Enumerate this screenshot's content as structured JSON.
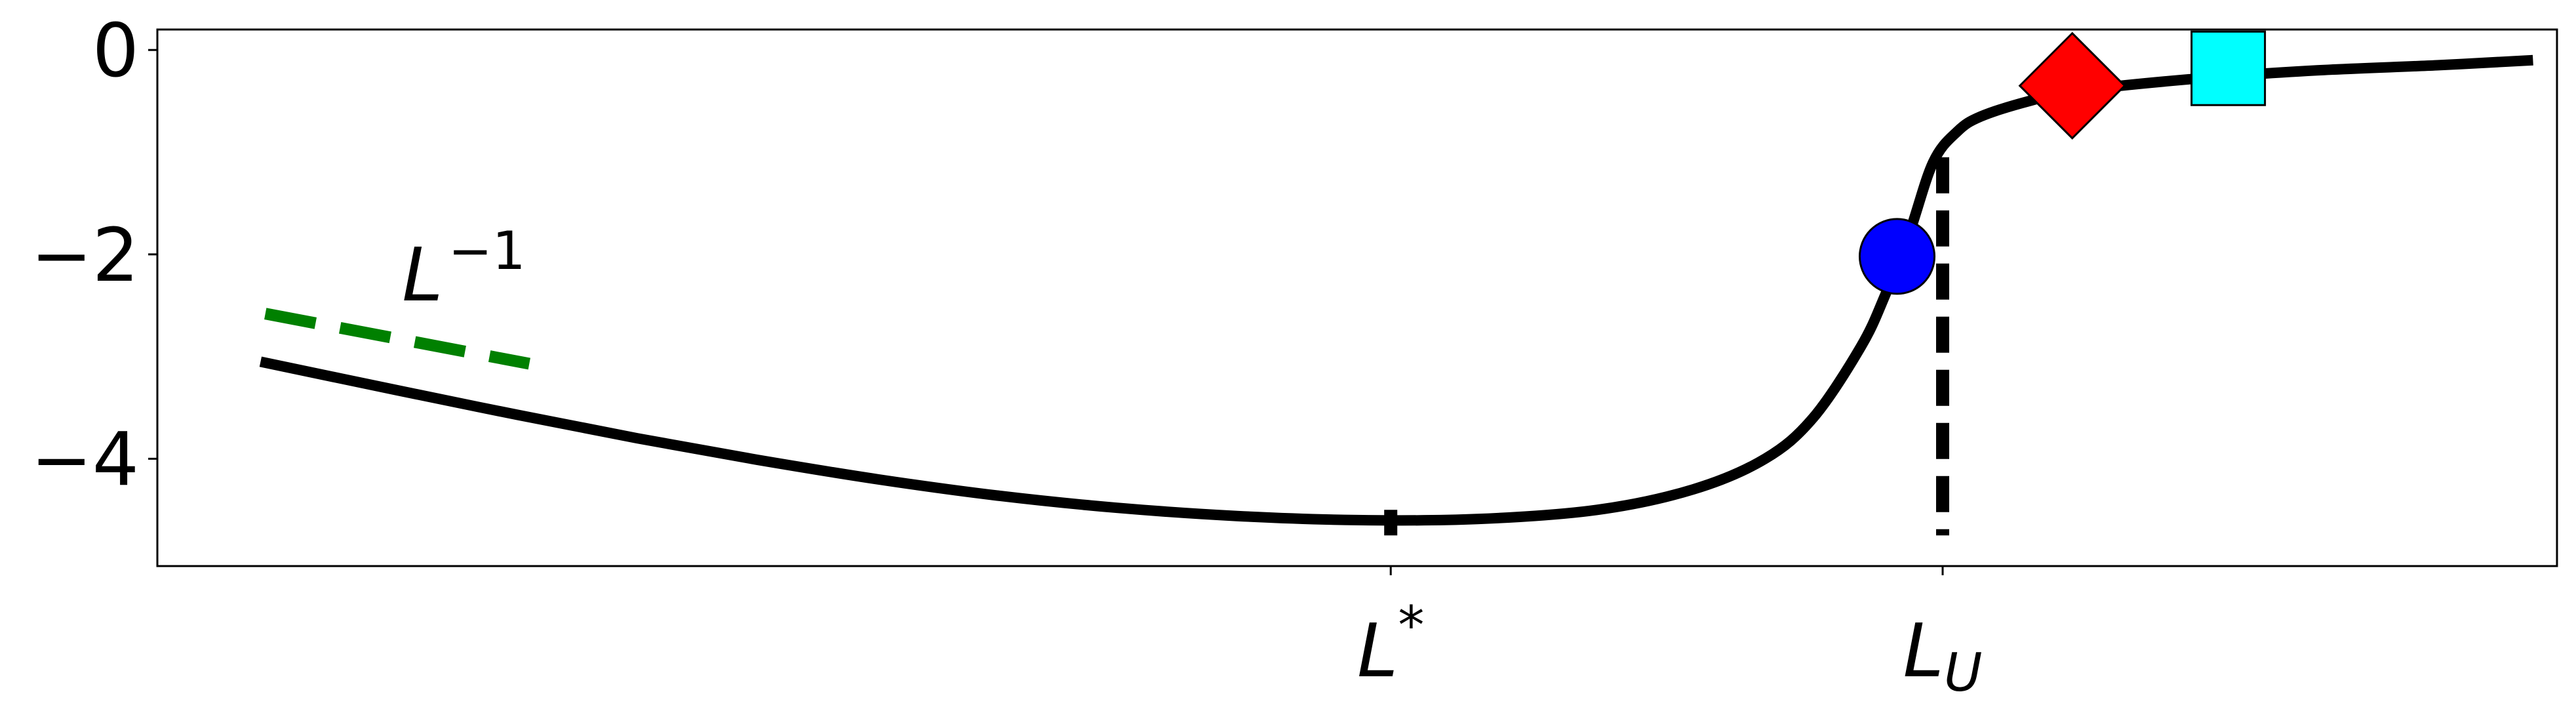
{
  "chart_data": {
    "type": "line",
    "title": "",
    "xlabel": "",
    "ylabel": "",
    "ylim": [
      -5.05,
      0.2
    ],
    "xlim": [
      0,
      1
    ],
    "grid": false,
    "y_ticks": [
      {
        "value": 0,
        "label": "0"
      },
      {
        "value": -2,
        "label": "−2"
      },
      {
        "value": -4,
        "label": "−4"
      }
    ],
    "x_ticks": [
      {
        "value": 0.514,
        "label": "L",
        "sup": "*",
        "sub": ""
      },
      {
        "value": 0.744,
        "label": "L",
        "sup": "",
        "sub": "U"
      }
    ],
    "series": [
      {
        "color": "#000000",
        "style": "solid",
        "x": [
          0.043,
          0.1,
          0.15,
          0.2,
          0.25,
          0.3,
          0.35,
          0.4,
          0.45,
          0.5,
          0.55,
          0.6,
          0.64,
          0.67,
          0.69,
          0.71,
          0.72,
          0.73,
          0.74,
          0.75,
          0.76,
          0.78,
          0.8,
          0.85,
          0.9,
          0.95,
          0.99
        ],
        "y": [
          -3.05,
          -3.33,
          -3.57,
          -3.8,
          -4.01,
          -4.2,
          -4.36,
          -4.48,
          -4.56,
          -4.6,
          -4.59,
          -4.5,
          -4.3,
          -4.0,
          -3.6,
          -2.9,
          -2.4,
          -1.8,
          -1.1,
          -0.8,
          -0.65,
          -0.5,
          -0.4,
          -0.28,
          -0.2,
          -0.15,
          -0.1
        ]
      }
    ],
    "reference_lines": [
      {
        "name": "L^{-1}",
        "color": "#008000",
        "style": "dashed",
        "x": [
          0.045,
          0.155
        ],
        "y": [
          -2.58,
          -3.07
        ]
      },
      {
        "color": "#000000",
        "style": "dashed",
        "x": [
          0.744,
          0.744
        ],
        "y": [
          -1.05,
          -4.75
        ]
      },
      {
        "color": "#000000",
        "style": "dashed",
        "x": [
          0.514,
          0.514
        ],
        "y": [
          -4.5,
          -4.75
        ]
      }
    ],
    "markers": [
      {
        "shape": "circle",
        "color": "#0000ff",
        "x": 0.725,
        "y": -2.02
      },
      {
        "shape": "diamond",
        "color": "#ff0000",
        "x": 0.798,
        "y": -0.35
      },
      {
        "shape": "square",
        "color": "#00ffff",
        "x": 0.863,
        "y": -0.18
      }
    ],
    "annotations": [
      {
        "label": "L",
        "sup": "−1",
        "x": 0.102,
        "y": -2.45
      }
    ]
  }
}
